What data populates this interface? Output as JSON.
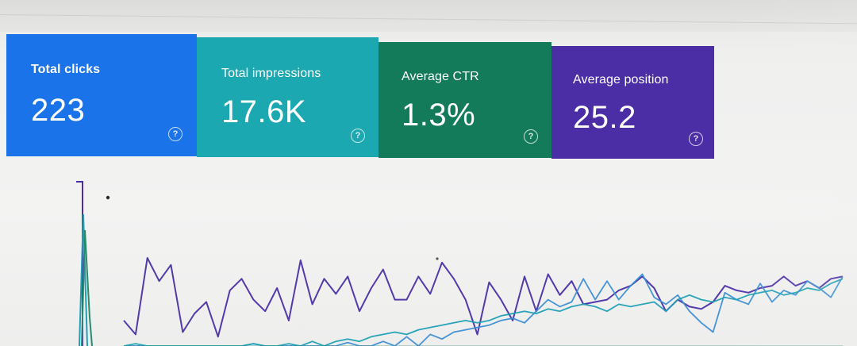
{
  "metrics": {
    "clicks": {
      "label": "Total clicks",
      "value": "223",
      "help_glyph": "?",
      "color": "#1a73e8"
    },
    "impressions": {
      "label": "Total impressions",
      "value": "17.6K",
      "help_glyph": "?",
      "color": "#1ba8b0"
    },
    "ctr": {
      "label": "Average CTR",
      "value": "1.3%",
      "help_glyph": "?",
      "color": "#137a5a"
    },
    "position": {
      "label": "Average position",
      "value": "25.2",
      "help_glyph": "?",
      "color": "#4b2ea6"
    }
  },
  "chart_data": {
    "type": "line",
    "title": "",
    "xlabel": "",
    "ylabel": "",
    "grid": false,
    "ylim": [
      0,
      100
    ],
    "series": [
      {
        "key": "position",
        "color": "#4b2ea6",
        "values": [
          22,
          10,
          76,
          56,
          70,
          12,
          28,
          38,
          8,
          48,
          58,
          40,
          30,
          50,
          22,
          74,
          36,
          58,
          45,
          60,
          30,
          50,
          66,
          40,
          40,
          60,
          45,
          72,
          58,
          40,
          10,
          55,
          40,
          22,
          60,
          30,
          62,
          44,
          56,
          36,
          38,
          40,
          48,
          52,
          60,
          50,
          30,
          40,
          34,
          32,
          38,
          52,
          48,
          46,
          50,
          52,
          60,
          52,
          56,
          50,
          58,
          60
        ]
      },
      {
        "key": "clicks",
        "color": "#3c8ed4",
        "values": [
          0,
          0,
          0,
          0,
          0,
          0,
          0,
          0,
          0,
          0,
          0,
          2,
          0,
          0,
          0,
          0,
          0,
          0,
          0,
          3,
          0,
          0,
          4,
          0,
          8,
          0,
          10,
          6,
          12,
          14,
          16,
          18,
          22,
          24,
          20,
          30,
          40,
          34,
          38,
          58,
          40,
          56,
          40,
          52,
          62,
          42,
          36,
          44,
          30,
          20,
          12,
          46,
          40,
          36,
          54,
          38,
          48,
          44,
          56,
          50,
          42,
          60
        ]
      },
      {
        "key": "impressions",
        "color": "#1e9fb5",
        "values": [
          0,
          2,
          0,
          0,
          0,
          0,
          0,
          0,
          0,
          0,
          0,
          2,
          0,
          0,
          2,
          0,
          4,
          0,
          4,
          6,
          4,
          8,
          10,
          12,
          10,
          14,
          16,
          18,
          20,
          22,
          20,
          22,
          26,
          28,
          30,
          28,
          32,
          30,
          34,
          36,
          34,
          30,
          36,
          34,
          36,
          38,
          30,
          40,
          44,
          40,
          38,
          42,
          40,
          44,
          46,
          48,
          44,
          46,
          50,
          48,
          54,
          58
        ]
      },
      {
        "key": "ctr",
        "color": "#2a8a70",
        "values": [
          0,
          0,
          0,
          0,
          0,
          0,
          0,
          0,
          0,
          0,
          0,
          0,
          0,
          0,
          0,
          0,
          0,
          0,
          0,
          0,
          0,
          0,
          0,
          0,
          0,
          0,
          0,
          0,
          0,
          0,
          0,
          0,
          0,
          0,
          0,
          0,
          0,
          0,
          0,
          0,
          0,
          0,
          0,
          0,
          0,
          0,
          0,
          0,
          0,
          0,
          0,
          0,
          0,
          0,
          0,
          0,
          0,
          0,
          0,
          0,
          0,
          0
        ]
      }
    ]
  }
}
